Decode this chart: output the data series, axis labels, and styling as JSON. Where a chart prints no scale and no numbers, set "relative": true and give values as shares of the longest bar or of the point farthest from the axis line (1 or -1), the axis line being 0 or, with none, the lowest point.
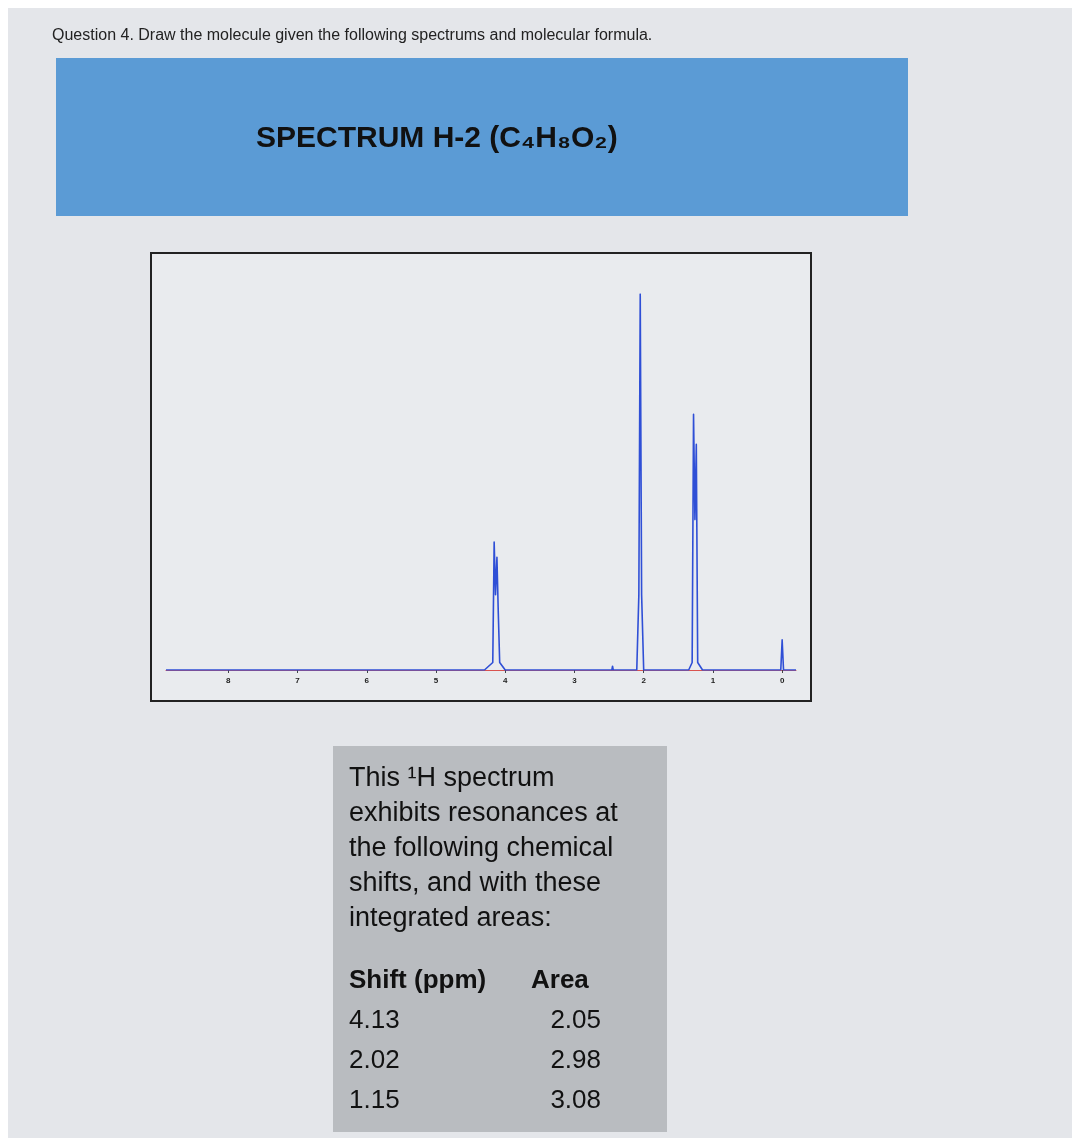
{
  "chart_data": {
    "type": "line",
    "title": "SPECTRUM H-2 (C₄H₈O₂)",
    "relative": true,
    "xlim": [
      8.9,
      -0.2
    ],
    "xticks": [
      8,
      7,
      6,
      5,
      4,
      3,
      2,
      1,
      0
    ],
    "marker": "none",
    "line_style": "solid",
    "grid": false,
    "series": [
      {
        "color": "#2f4fd6",
        "x": [
          8.9,
          4.3,
          4.18,
          4.16,
          4.14,
          4.12,
          4.1,
          4.08,
          4.0,
          2.5,
          2.46,
          2.45,
          2.44,
          2.1,
          2.07,
          2.05,
          2.03,
          2.0,
          1.35,
          1.3,
          1.28,
          1.26,
          1.24,
          1.22,
          1.15,
          0.02,
          0.0,
          -0.02,
          -0.2
        ],
        "values": [
          0,
          0,
          0.02,
          0.34,
          0.2,
          0.3,
          0.15,
          0.02,
          0,
          0,
          0,
          0.01,
          0,
          0,
          0.2,
          1,
          0.2,
          0,
          0,
          0.02,
          0.68,
          0.4,
          0.6,
          0.02,
          0,
          0,
          0.08,
          0,
          0
        ]
      }
    ],
    "annotations": [
      "Question 4. Draw the molecule given the following spectrums and molecular formula.",
      "This ¹H spectrum exhibits resonances at the following chemical shifts, and with these integrated areas:",
      "Shift (ppm)",
      "Area",
      "4.13",
      "2.05",
      "2.02",
      "2.98",
      "1.15",
      "3.08"
    ]
  }
}
